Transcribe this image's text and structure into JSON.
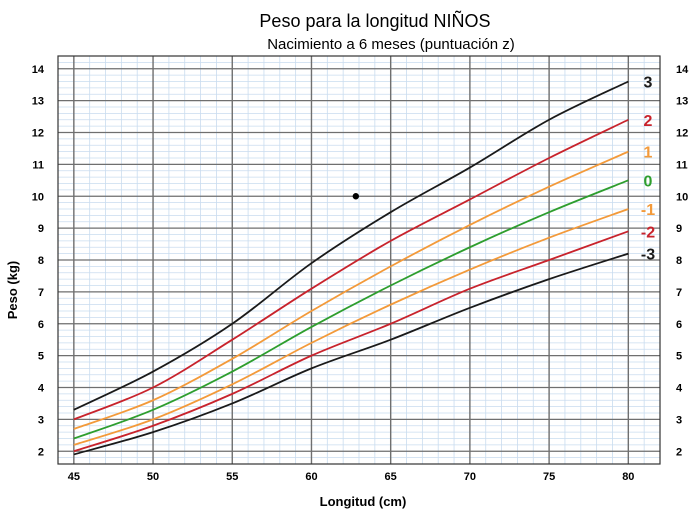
{
  "chart_data": {
    "type": "line",
    "title": "Peso para la longitud NIÑOS",
    "subtitle": "Nacimiento a 6 meses (puntuación z)",
    "xlabel": "Longitud (cm)",
    "ylabel": "Peso (kg)",
    "xlim": [
      44,
      82
    ],
    "ylim": [
      1.6,
      14.4
    ],
    "x_ticks": [
      45,
      50,
      55,
      60,
      65,
      70,
      75,
      80
    ],
    "x_tick_labels": [
      "45",
      "50",
      "55",
      "60",
      "65",
      "70",
      "75",
      "80"
    ],
    "y_ticks": [
      2,
      3,
      4,
      5,
      6,
      7,
      8,
      9,
      10,
      11,
      12,
      13,
      14
    ],
    "y_tick_labels": [
      "2",
      "3",
      "4",
      "5",
      "6",
      "7",
      "8",
      "9",
      "10",
      "11",
      "12",
      "13",
      "14"
    ],
    "grid": true,
    "x": [
      45,
      50,
      55,
      60,
      65,
      70,
      75,
      80
    ],
    "series": [
      {
        "name": "3",
        "color": "#1a1a1a",
        "values": [
          3.3,
          4.5,
          6.0,
          7.9,
          9.5,
          10.9,
          12.4,
          13.6
        ]
      },
      {
        "name": "2",
        "color": "#c8232c",
        "values": [
          3.0,
          4.0,
          5.5,
          7.1,
          8.6,
          9.9,
          11.2,
          12.4
        ]
      },
      {
        "name": "1",
        "color": "#f39a3a",
        "values": [
          2.7,
          3.6,
          4.9,
          6.4,
          7.8,
          9.1,
          10.3,
          11.4
        ]
      },
      {
        "name": "0",
        "color": "#2e9e2e",
        "values": [
          2.4,
          3.3,
          4.5,
          5.9,
          7.2,
          8.4,
          9.5,
          10.5
        ]
      },
      {
        "name": "-1",
        "color": "#f39a3a",
        "values": [
          2.2,
          3.0,
          4.1,
          5.4,
          6.6,
          7.7,
          8.7,
          9.6
        ]
      },
      {
        "name": "-2",
        "color": "#c8232c",
        "values": [
          2.0,
          2.8,
          3.8,
          5.0,
          6.0,
          7.1,
          8.0,
          8.9
        ]
      },
      {
        "name": "-3",
        "color": "#1a1a1a",
        "values": [
          1.9,
          2.6,
          3.5,
          4.6,
          5.5,
          6.5,
          7.4,
          8.2
        ]
      }
    ],
    "marker": {
      "x": 62.8,
      "y": 10.0
    }
  }
}
